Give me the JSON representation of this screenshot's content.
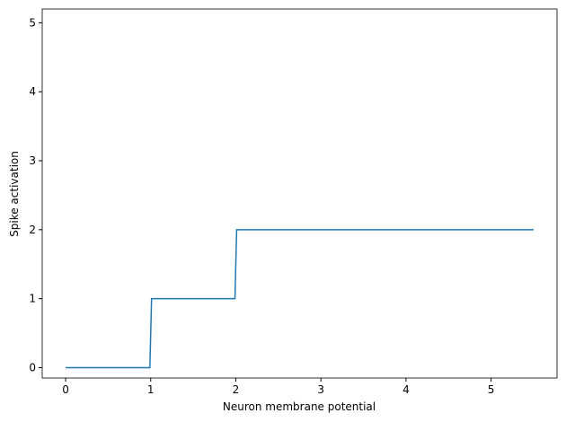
{
  "chart_data": {
    "type": "line",
    "xlabel": "Neuron membrane potential",
    "ylabel": "Spike activation",
    "x": [
      0,
      0.99,
      1.01,
      1.99,
      2.01,
      5.5
    ],
    "series": [
      {
        "color": "#1f77b4",
        "values": [
          0,
          0,
          1,
          1,
          2,
          2
        ]
      }
    ],
    "xlim": [
      -0.275,
      5.775
    ],
    "ylim": [
      -0.15,
      5.2
    ],
    "xticks": [
      0,
      1,
      2,
      3,
      4,
      5
    ],
    "yticks": [
      0,
      1,
      2,
      3,
      4,
      5
    ]
  }
}
